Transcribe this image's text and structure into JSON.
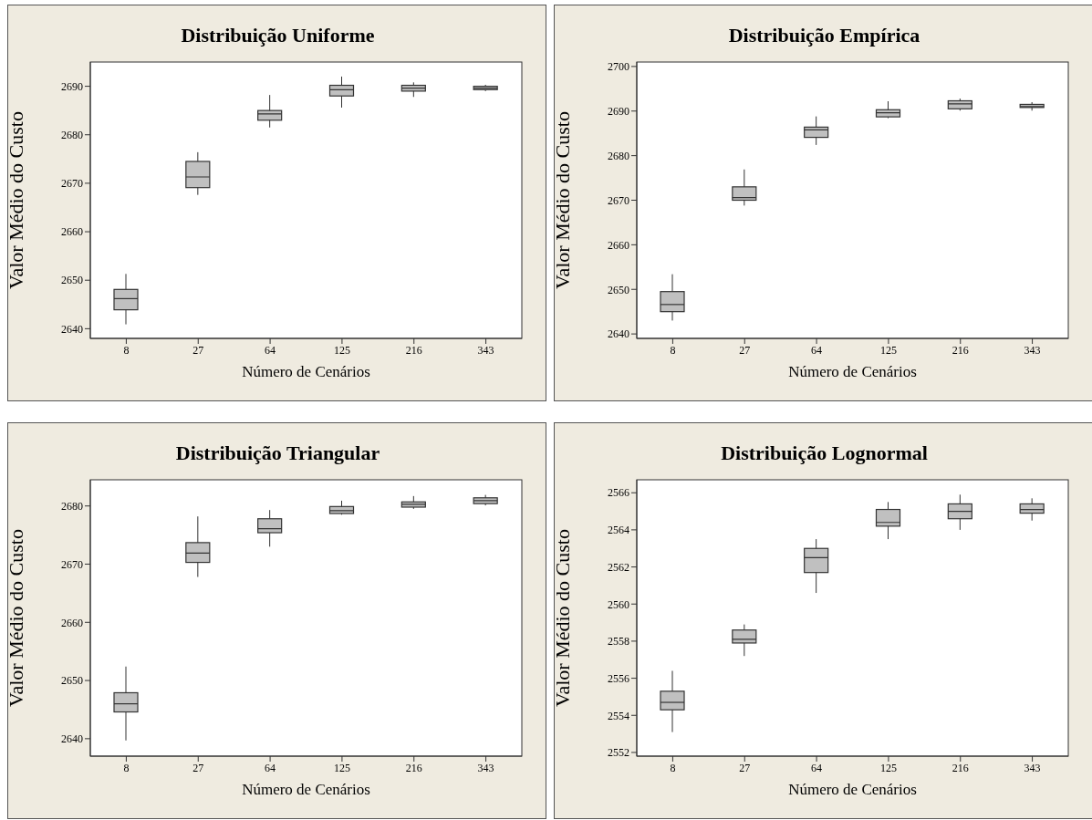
{
  "chart_data": [
    {
      "type": "box",
      "title": "Distribuição Uniforme",
      "xlabel": "Número de Cenários",
      "ylabel": "Valor Médio do Custo",
      "categories": [
        "8",
        "27",
        "64",
        "125",
        "216",
        "343"
      ],
      "color": "#c0c0c0",
      "ylim": [
        2638,
        2695
      ],
      "yticks": [
        2640,
        2650,
        2660,
        2670,
        2680,
        2690
      ],
      "grid": false,
      "legend": false,
      "boxes": [
        {
          "low": 2640.9,
          "q1": 2643.9,
          "median": 2646.2,
          "q3": 2648.1,
          "high": 2651.3
        },
        {
          "low": 2667.6,
          "q1": 2669.1,
          "median": 2671.3,
          "q3": 2674.5,
          "high": 2676.4
        },
        {
          "low": 2681.5,
          "q1": 2683.0,
          "median": 2684.3,
          "q3": 2685.0,
          "high": 2688.2
        },
        {
          "low": 2685.6,
          "q1": 2688.0,
          "median": 2689.3,
          "q3": 2690.2,
          "high": 2692.0
        },
        {
          "low": 2687.8,
          "q1": 2689.0,
          "median": 2689.6,
          "q3": 2690.2,
          "high": 2690.8
        },
        {
          "low": 2689.0,
          "q1": 2689.3,
          "median": 2689.6,
          "q3": 2690.0,
          "high": 2690.3
        }
      ]
    },
    {
      "type": "box",
      "title": "Distribuição Empírica",
      "xlabel": "Número de Cenários",
      "ylabel": "Valor Médio do Custo",
      "categories": [
        "8",
        "27",
        "64",
        "125",
        "216",
        "343"
      ],
      "color": "#c0c0c0",
      "ylim": [
        2639,
        2701
      ],
      "yticks": [
        2640,
        2650,
        2660,
        2670,
        2680,
        2690,
        2700
      ],
      "grid": false,
      "legend": false,
      "boxes": [
        {
          "low": 2643.0,
          "q1": 2645.0,
          "median": 2646.6,
          "q3": 2649.5,
          "high": 2653.4
        },
        {
          "low": 2668.8,
          "q1": 2670.0,
          "median": 2670.6,
          "q3": 2673.0,
          "high": 2676.9
        },
        {
          "low": 2682.4,
          "q1": 2684.1,
          "median": 2685.8,
          "q3": 2686.4,
          "high": 2688.8
        },
        {
          "low": 2688.4,
          "q1": 2688.7,
          "median": 2689.6,
          "q3": 2690.3,
          "high": 2692.2
        },
        {
          "low": 2690.1,
          "q1": 2690.5,
          "median": 2691.6,
          "q3": 2692.3,
          "high": 2692.8
        },
        {
          "low": 2690.1,
          "q1": 2690.8,
          "median": 2691.0,
          "q3": 2691.5,
          "high": 2692.0
        }
      ]
    },
    {
      "type": "box",
      "title": "Distribuição Triangular",
      "xlabel": "Número de Cenários",
      "ylabel": "Valor Médio do Custo",
      "categories": [
        "8",
        "27",
        "64",
        "125",
        "216",
        "343"
      ],
      "color": "#c0c0c0",
      "ylim": [
        2637,
        2684.5
      ],
      "yticks": [
        2640,
        2650,
        2660,
        2670,
        2680
      ],
      "grid": false,
      "legend": false,
      "boxes": [
        {
          "low": 2639.7,
          "q1": 2644.6,
          "median": 2646.0,
          "q3": 2647.9,
          "high": 2652.4
        },
        {
          "low": 2667.8,
          "q1": 2670.3,
          "median": 2671.9,
          "q3": 2673.7,
          "high": 2678.2
        },
        {
          "low": 2673.0,
          "q1": 2675.4,
          "median": 2676.1,
          "q3": 2677.8,
          "high": 2679.3
        },
        {
          "low": 2678.5,
          "q1": 2678.7,
          "median": 2679.2,
          "q3": 2679.9,
          "high": 2680.9
        },
        {
          "low": 2679.5,
          "q1": 2679.8,
          "median": 2680.3,
          "q3": 2680.7,
          "high": 2681.7
        },
        {
          "low": 2680.1,
          "q1": 2680.4,
          "median": 2680.9,
          "q3": 2681.4,
          "high": 2681.9
        }
      ]
    },
    {
      "type": "box",
      "title": "Distribuição Lognormal",
      "xlabel": "Número de Cenários",
      "ylabel": "Valor Médio do Custo",
      "categories": [
        "8",
        "27",
        "64",
        "125",
        "216",
        "343"
      ],
      "color": "#c0c0c0",
      "ylim": [
        2551.8,
        2566.7
      ],
      "yticks": [
        2552,
        2554,
        2556,
        2558,
        2560,
        2562,
        2564,
        2566
      ],
      "grid": false,
      "legend": false,
      "boxes": [
        {
          "low": 2553.1,
          "q1": 2554.3,
          "median": 2554.7,
          "q3": 2555.3,
          "high": 2556.4
        },
        {
          "low": 2557.2,
          "q1": 2557.9,
          "median": 2558.1,
          "q3": 2558.6,
          "high": 2558.9
        },
        {
          "low": 2560.6,
          "q1": 2561.7,
          "median": 2562.5,
          "q3": 2563.0,
          "high": 2563.5
        },
        {
          "low": 2563.5,
          "q1": 2564.2,
          "median": 2564.4,
          "q3": 2565.1,
          "high": 2565.5
        },
        {
          "low": 2564.0,
          "q1": 2564.6,
          "median": 2565.0,
          "q3": 2565.4,
          "high": 2565.9
        },
        {
          "low": 2564.5,
          "q1": 2564.9,
          "median": 2565.1,
          "q3": 2565.4,
          "high": 2565.7
        }
      ]
    }
  ]
}
